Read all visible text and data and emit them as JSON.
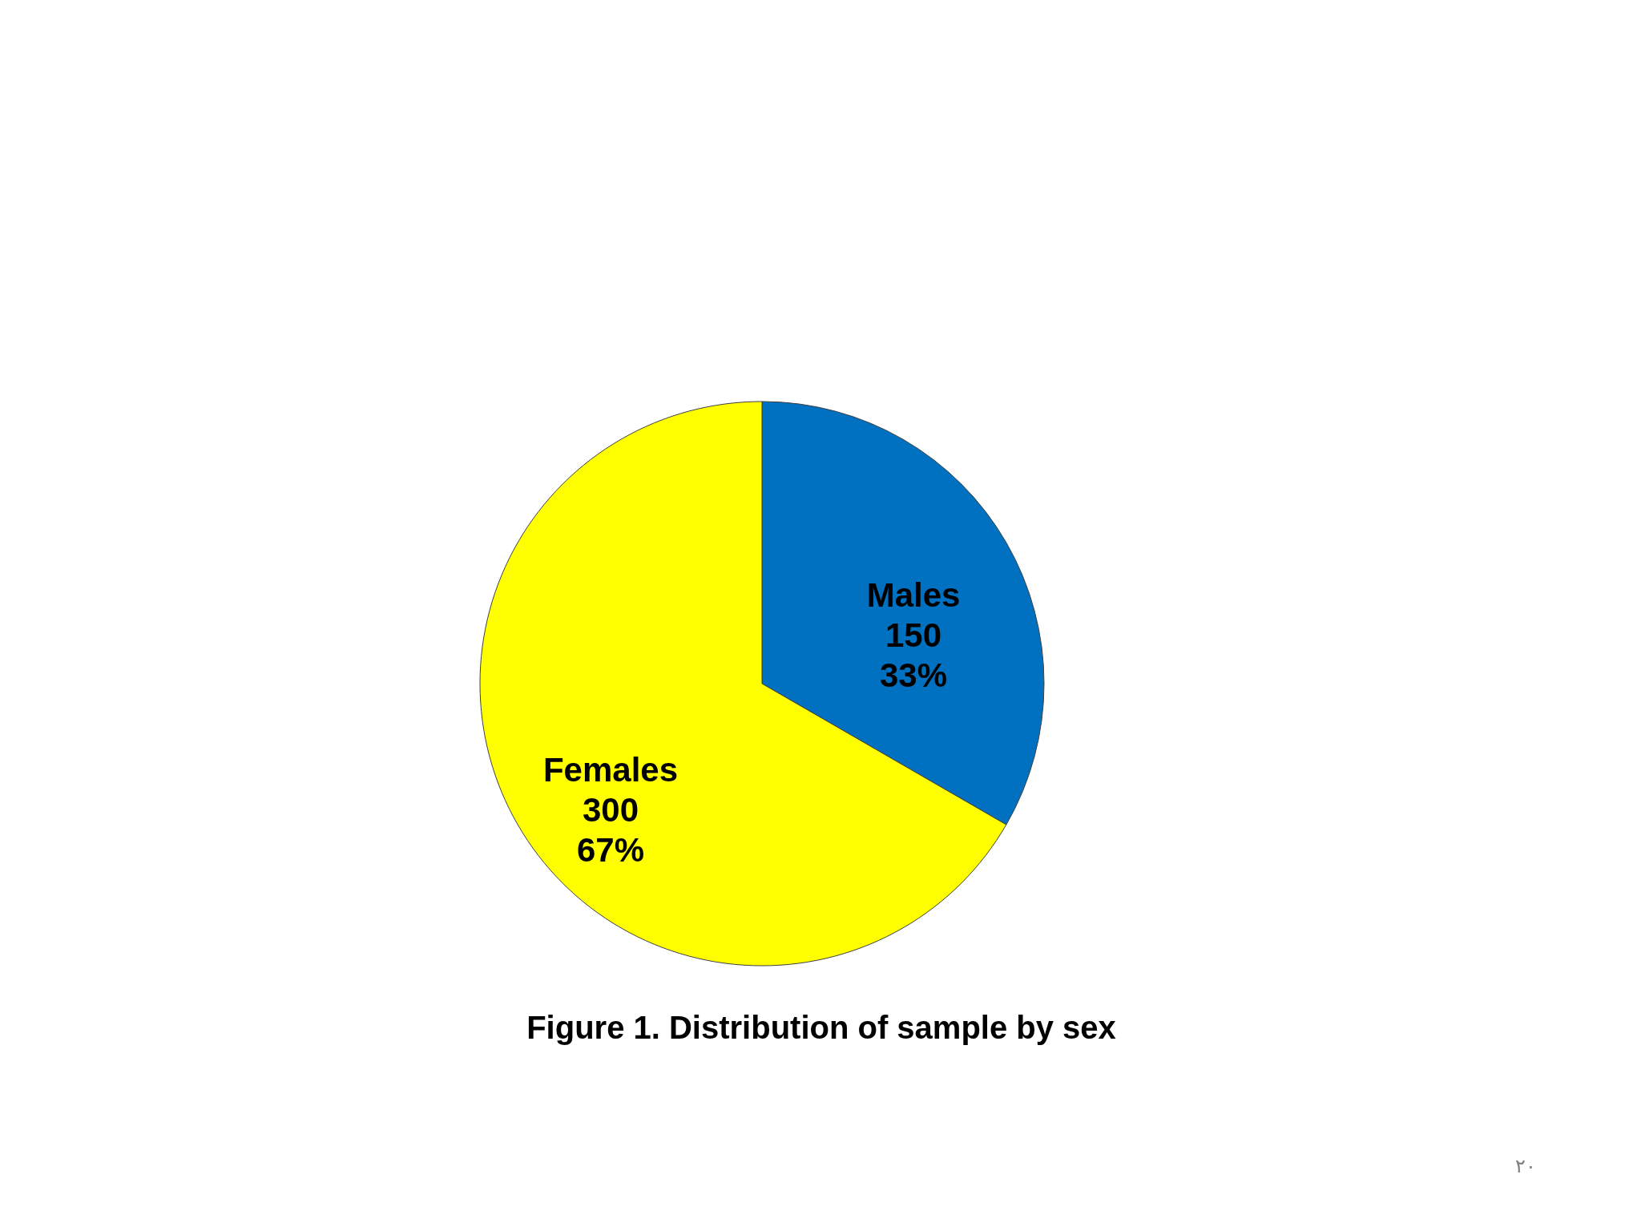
{
  "chart_data": {
    "type": "pie",
    "categories": [
      "Males",
      "Females"
    ],
    "values": [
      150,
      300
    ],
    "colors": [
      "#0070c0",
      "#ffff00"
    ],
    "value_labels": [
      "150\n33%",
      "300\n67%"
    ],
    "annotations": [
      "Figure 1. Distribution of sample by sex",
      "٢٠"
    ]
  }
}
